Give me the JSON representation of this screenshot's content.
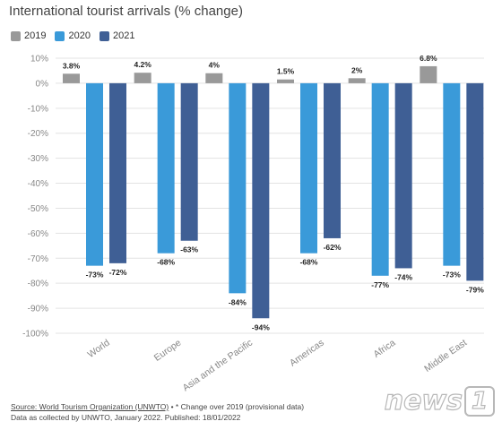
{
  "header": {
    "title": "International tourist arrivals (% change)"
  },
  "legend": [
    {
      "label": "2019",
      "color": "#999999"
    },
    {
      "label": "2020",
      "color": "#3a9ad9"
    },
    {
      "label": "2021",
      "color": "#3f5f95"
    }
  ],
  "colors": {
    "grid": "#e3e3e3",
    "axis_text": "#888888",
    "value_text": "#222222"
  },
  "footer": {
    "source": "Source: World Tourism Organization (UNWTO)",
    "source_suffix": "• * Change over 2019 (provisional data)",
    "line2": "Data as collected by UNWTO, January 2022. Published: 18/01/2022"
  },
  "logo": {
    "text": "news",
    "badge": "1"
  },
  "chart_data": {
    "type": "bar",
    "title": "International tourist arrivals (% change)",
    "categories": [
      "World",
      "Europe",
      "Asia and the Pacific",
      "Americas",
      "Africa",
      "Middle East"
    ],
    "series": [
      {
        "name": "2019",
        "values": [
          3.8,
          4.2,
          4,
          1.5,
          2,
          6.8
        ],
        "labels": [
          "3.8%",
          "4.2%",
          "4%",
          "1.5%",
          "2%",
          "6.8%"
        ]
      },
      {
        "name": "2020",
        "values": [
          -73,
          -68,
          -84,
          -68,
          -77,
          -73
        ],
        "labels": [
          "-73%",
          "-68%",
          "-84%",
          "-68%",
          "-77%",
          "-73%"
        ]
      },
      {
        "name": "2021",
        "values": [
          -72,
          -63,
          -94,
          -62,
          -74,
          -79
        ],
        "labels": [
          "-72%",
          "-63%",
          "-94%",
          "-62%",
          "-74%",
          "-79%"
        ]
      }
    ],
    "ylim": [
      -100,
      10
    ],
    "yticks": [
      10,
      0,
      -10,
      -20,
      -30,
      -40,
      -50,
      -60,
      -70,
      -80,
      -90,
      -100
    ],
    "ytick_labels": [
      "10%",
      "0%",
      "-10%",
      "-20%",
      "-30%",
      "-40%",
      "-50%",
      "-60%",
      "-70%",
      "-80%",
      "-90%",
      "-100%"
    ],
    "grid": true,
    "legend_position": "top-left"
  }
}
